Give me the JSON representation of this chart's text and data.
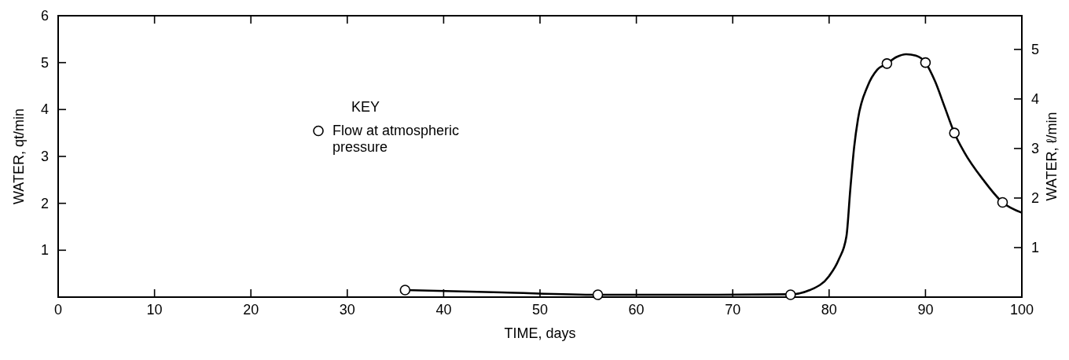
{
  "chart_data": {
    "type": "line",
    "xlabel": "TIME, days",
    "ylabel": "WATER, qt/min",
    "y2label": "WATER, ℓ/min",
    "legend_title": "KEY",
    "legend": "left",
    "xlim": [
      0,
      100
    ],
    "xticks": [
      0,
      10,
      20,
      30,
      40,
      50,
      60,
      70,
      80,
      90,
      100
    ],
    "ylim": [
      0,
      6
    ],
    "yticks": [
      {
        "value": 0,
        "label": null
      },
      1,
      2,
      3,
      4,
      5,
      6
    ],
    "y2lim": [
      0,
      5.68
    ],
    "y2ticks": [
      1,
      2,
      3,
      4,
      5
    ],
    "series": [
      {
        "color": "#000000",
        "marker": "none",
        "x": [
          36,
          46,
          56,
          66,
          76,
          78,
          80,
          81,
          81.8,
          82.2,
          82.6,
          83,
          84,
          85,
          86,
          87,
          88,
          89,
          90,
          91,
          92,
          93,
          94,
          96,
          98,
          100
        ],
        "values": [
          0.15,
          0.1,
          0.05,
          0.05,
          0.06,
          0.15,
          0.45,
          0.8,
          1.3,
          2.3,
          3.2,
          3.8,
          4.5,
          4.85,
          4.98,
          5.12,
          5.18,
          5.15,
          5.0,
          4.6,
          4.05,
          3.5,
          3.1,
          2.5,
          2.02,
          1.8
        ]
      },
      {
        "type": "scatter",
        "name": "Flow at atmospheric pressure",
        "color": "#000000",
        "marker": "circle",
        "x": [
          36,
          56,
          76,
          86,
          90,
          93,
          98
        ],
        "values": [
          0.15,
          0.05,
          0.05,
          4.98,
          5.0,
          3.5,
          2.02
        ]
      }
    ]
  }
}
